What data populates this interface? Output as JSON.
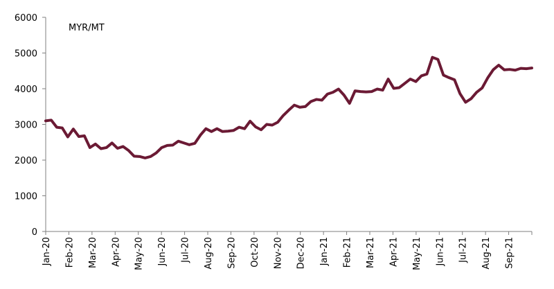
{
  "chart_data": {
    "type": "line",
    "title": "",
    "xlabel": "",
    "ylabel": "",
    "unit_label": "MYR/MT",
    "ylim": [
      0,
      6000
    ],
    "yticks": [
      0,
      1000,
      2000,
      3000,
      4000,
      5000,
      6000
    ],
    "grid": false,
    "legend": "none",
    "line_color": "#6b1a34",
    "x_tick_labels": [
      "Jan-20",
      "Feb-20",
      "Mar-20",
      "Apr-20",
      "May-20",
      "Jun-20",
      "Jul-20",
      "Aug-20",
      "Sep-20",
      "Oct-20",
      "Nov-20",
      "Dec-20",
      "Jan-21",
      "Feb-21",
      "Mar-21",
      "Apr-21",
      "May-21",
      "Jun-21",
      "Jul-21",
      "Aug-21",
      "Sep-21"
    ],
    "series": [
      {
        "name": "",
        "values": [
          3100,
          3120,
          2920,
          2900,
          2650,
          2870,
          2660,
          2680,
          2350,
          2450,
          2320,
          2350,
          2480,
          2330,
          2380,
          2270,
          2110,
          2100,
          2060,
          2100,
          2200,
          2350,
          2410,
          2420,
          2530,
          2480,
          2430,
          2470,
          2700,
          2880,
          2800,
          2880,
          2800,
          2810,
          2830,
          2920,
          2880,
          3090,
          2930,
          2850,
          3000,
          2980,
          3060,
          3250,
          3400,
          3540,
          3480,
          3500,
          3640,
          3700,
          3680,
          3850,
          3900,
          3990,
          3820,
          3590,
          3940,
          3920,
          3910,
          3920,
          3990,
          3960,
          4270,
          4010,
          4030,
          4150,
          4270,
          4200,
          4360,
          4410,
          4880,
          4820,
          4380,
          4310,
          4250,
          3860,
          3620,
          3720,
          3900,
          4020,
          4300,
          4530,
          4660,
          4530,
          4540,
          4520,
          4570,
          4560,
          4580
        ]
      }
    ]
  }
}
